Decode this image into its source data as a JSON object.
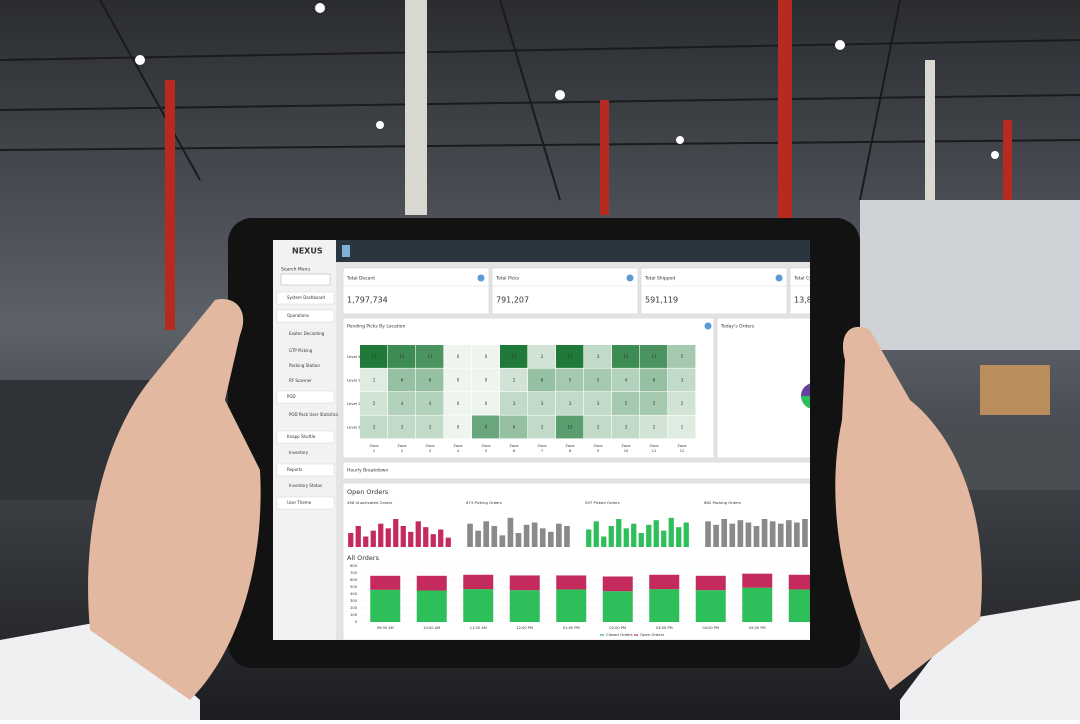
{
  "header": {
    "logo": "NEXUS"
  },
  "sidebar": {
    "search_label": "Search Menu",
    "items": [
      "System Dashboard",
      "Operations",
      "Exotec Decanting",
      "GTP Picking",
      "Packing Station",
      "RF Scanner",
      "POD",
      "POD Pack User Statistics",
      "Knapp Shuttle",
      "Inventory",
      "Reports",
      "Inventory Status",
      "User Theme"
    ]
  },
  "kpis": [
    {
      "title": "Total Decant",
      "value": "1,797,734"
    },
    {
      "title": "Total Picks",
      "value": "791,207"
    },
    {
      "title": "Total Shipped",
      "value": "591,119"
    },
    {
      "title": "Total Cy",
      "value": "13,82"
    }
  ],
  "heatmap": {
    "title": "Pending Picks By Location",
    "rows": [
      "Level 4",
      "Level 3",
      "Level 2",
      "Level 1"
    ],
    "zone_label": "Zone",
    "zones": [
      1,
      2,
      3,
      4,
      5,
      6,
      7,
      8,
      9,
      10,
      11,
      12
    ],
    "values": [
      [
        14,
        12,
        11,
        0,
        0,
        14,
        2,
        14,
        3,
        12,
        11,
        5
      ],
      [
        1,
        6,
        6,
        0,
        0,
        2,
        6,
        5,
        5,
        4,
        6,
        3
      ],
      [
        2,
        4,
        4,
        0,
        0,
        3,
        3,
        3,
        3,
        5,
        5,
        2
      ],
      [
        3,
        3,
        3,
        0,
        9,
        6,
        3,
        10,
        3,
        3,
        2,
        1
      ]
    ],
    "clim": [
      0,
      14
    ],
    "colors": [
      "#eef5ef",
      "#1f7a3a"
    ]
  },
  "today": {
    "title": "Today's Orders"
  },
  "hourly": {
    "title": "Hourly Breakdown"
  },
  "open_orders": {
    "title": "Open Orders",
    "charts": [
      {
        "label": "496 Unactivated Orders",
        "color": "#c42a5c",
        "ylim": [
          0,
          30
        ],
        "values": [
          12,
          18,
          9,
          14,
          20,
          16,
          24,
          18,
          13,
          22,
          17,
          11,
          15,
          8
        ]
      },
      {
        "label": "673 Picking Orders",
        "color": "#8a8a8a",
        "ylim": [
          0,
          30
        ],
        "values": [
          20,
          14,
          22,
          18,
          10,
          25,
          12,
          19,
          21,
          16,
          13,
          20,
          18
        ]
      },
      {
        "label": "597 Picked Orders",
        "color": "#2fbf5a",
        "ylim": [
          0,
          30
        ],
        "values": [
          15,
          22,
          9,
          18,
          24,
          16,
          20,
          12,
          19,
          23,
          14,
          25,
          17,
          21
        ]
      },
      {
        "label": "682 Packing Orders",
        "color": "#8a8a8a",
        "ylim": [
          0,
          30
        ],
        "values": [
          22,
          19,
          24,
          20,
          23,
          21,
          18,
          24,
          22,
          20,
          23,
          21,
          24
        ]
      }
    ]
  },
  "chart_data": {
    "type": "stacked_bar",
    "title": "All Orders",
    "categories": [
      "09:00 AM",
      "10:00 AM",
      "11:00 AM",
      "12:00 PM",
      "01:00 PM",
      "02:00 PM",
      "03:00 PM",
      "04:00 PM",
      "05:00 PM",
      null
    ],
    "series": [
      {
        "name": "Closed Orders",
        "color": "#2fbf5a",
        "values": [
          460,
          450,
          470,
          455,
          465,
          440,
          470,
          455,
          490,
          465
        ]
      },
      {
        "name": "Open Orders",
        "color": "#c42a5c",
        "values": [
          200,
          210,
          205,
          210,
          200,
          210,
          205,
          205,
          200,
          210
        ]
      }
    ],
    "ylim": [
      0,
      800
    ],
    "yticks": [
      0,
      100,
      200,
      300,
      400,
      500,
      600,
      700,
      800
    ]
  }
}
